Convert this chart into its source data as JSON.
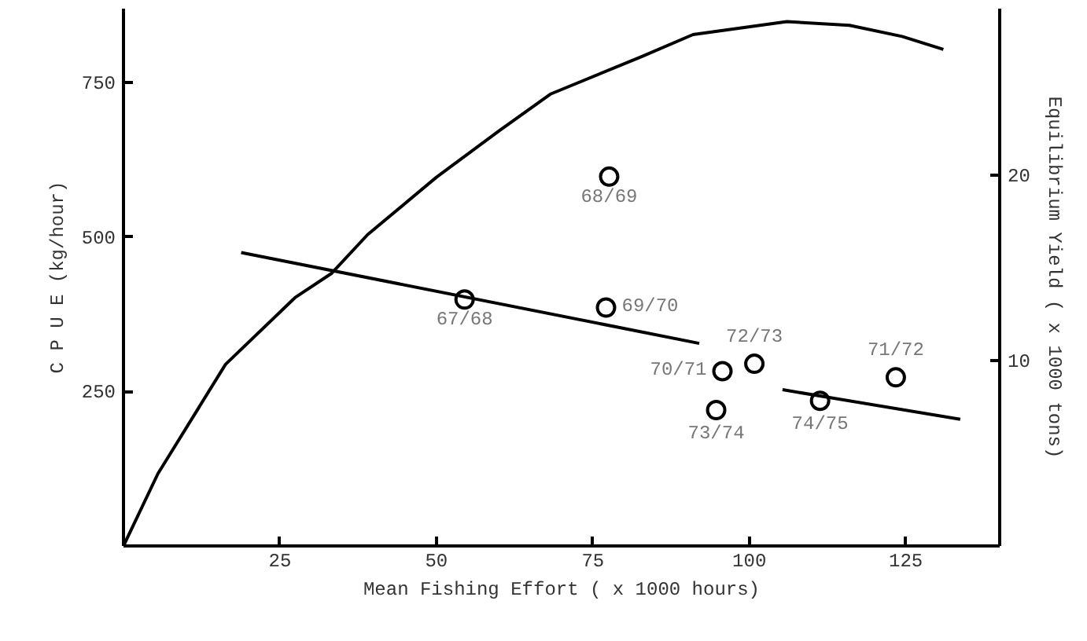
{
  "chart_data": {
    "type": "scatter",
    "xlabel": "Mean Fishing Effort ( x 1000 hours)",
    "ylabel": "C P U E (kg/hour)",
    "y2label": "Equilibrium Yield ( x 1000 tons)",
    "xlim": [
      0,
      140
    ],
    "ylim": [
      0,
      870
    ],
    "y2lim": [
      0,
      29
    ],
    "xticks": [
      25,
      50,
      75,
      100,
      125
    ],
    "yticks": [
      250,
      500,
      750
    ],
    "y2ticks": [
      10,
      20
    ],
    "grid": false,
    "series": [
      {
        "marker": "circle",
        "color": "#000000",
        "x": [
          54.5,
          77.6,
          77.1,
          95.7,
          100.8,
          94.7,
          111.3,
          123.4
        ],
        "values": [
          399,
          598,
          386,
          283,
          295,
          220,
          235,
          273
        ]
      },
      {
        "type": "line",
        "color": "#000000",
        "x": [
          18.8,
          92
        ],
        "values": [
          475,
          328
        ]
      },
      {
        "type": "line",
        "color": "#000000",
        "x": [
          105.3,
          133.7
        ],
        "values": [
          253,
          205
        ]
      },
      {
        "type": "line",
        "color": "#000000",
        "axis": "y2",
        "x": [
          0,
          5.5,
          16.3,
          27.4,
          33.2,
          39,
          50,
          60,
          68.3,
          82.7,
          91,
          106,
          116,
          124.4,
          131
        ],
        "values": [
          0,
          3.9,
          9.8,
          13.4,
          14.7,
          16.8,
          19.9,
          22.4,
          24.4,
          26.4,
          27.6,
          28.3,
          28.1,
          27.5,
          26.8
        ]
      }
    ],
    "annotations": [
      {
        "text": "67/68",
        "x": 54.5,
        "y": 399
      },
      {
        "text": "68/69",
        "x": 77.6,
        "y": 598
      },
      {
        "text": "69/70",
        "x": 77.1,
        "y": 386
      },
      {
        "text": "70/71",
        "x": 95.7,
        "y": 283
      },
      {
        "text": "72/73",
        "x": 100.8,
        "y": 295
      },
      {
        "text": "73/74",
        "x": 94.7,
        "y": 220
      },
      {
        "text": "74/75",
        "x": 111.3,
        "y": 235
      },
      {
        "text": "71/72",
        "x": 123.4,
        "y": 273
      }
    ]
  }
}
